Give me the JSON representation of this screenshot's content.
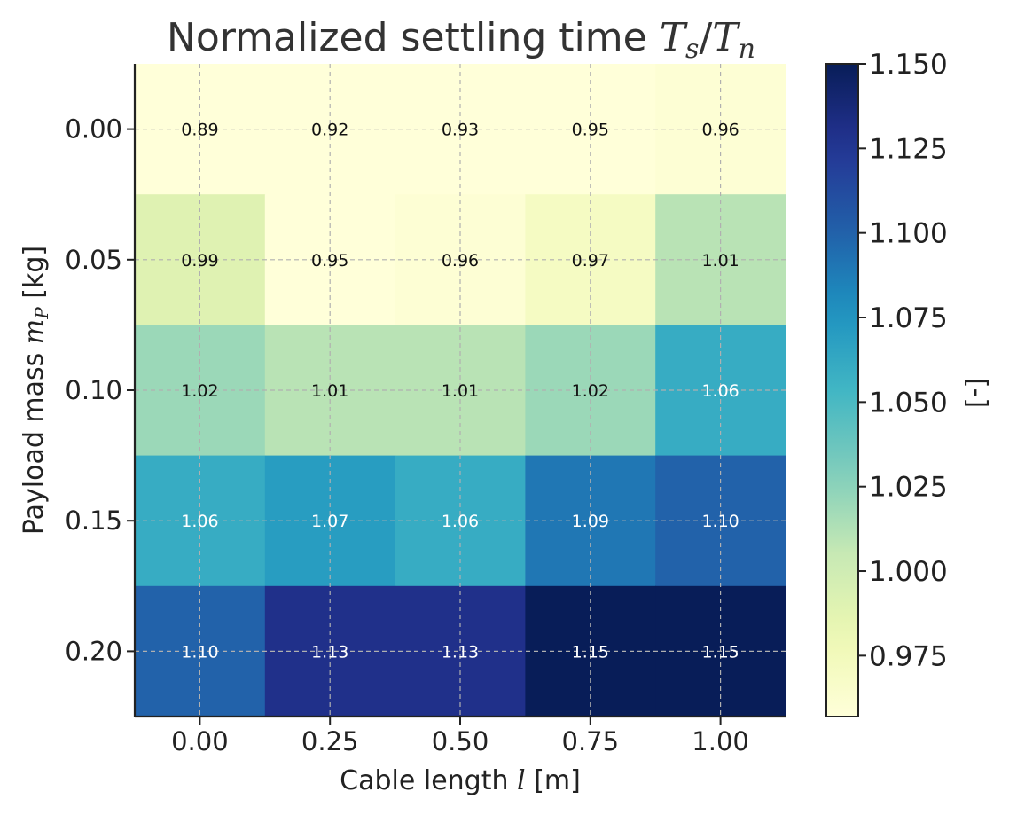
{
  "chart_data": {
    "type": "heatmap",
    "title": "Normalized settling time",
    "title_math": {
      "ts_base": "T",
      "ts_sub": "s",
      "slash": "/",
      "tn_base": "T",
      "tn_sub": "n"
    },
    "xlabel": {
      "prefix": "Cable length ",
      "var": "l",
      "suffix": " [m]"
    },
    "ylabel": {
      "prefix": "Payload mass ",
      "var": "m",
      "sub": "P",
      "suffix": " [kg]"
    },
    "x_ticks": [
      "0.00",
      "0.25",
      "0.50",
      "0.75",
      "1.00"
    ],
    "y_ticks": [
      "0.00",
      "0.05",
      "0.10",
      "0.15",
      "0.20"
    ],
    "values": [
      [
        0.89,
        0.92,
        0.93,
        0.95,
        0.96
      ],
      [
        0.99,
        0.95,
        0.96,
        0.97,
        1.01
      ],
      [
        1.02,
        1.01,
        1.01,
        1.02,
        1.06
      ],
      [
        1.06,
        1.07,
        1.06,
        1.09,
        1.1
      ],
      [
        1.1,
        1.13,
        1.13,
        1.15,
        1.15
      ]
    ],
    "colorbar": {
      "label": "[-]",
      "vmin": 0.957,
      "vmax": 1.15,
      "ticks": [
        0.975,
        1.0,
        1.025,
        1.05,
        1.075,
        1.1,
        1.125,
        1.15
      ],
      "tick_labels": [
        "0.975",
        "1.000",
        "1.025",
        "1.050",
        "1.075",
        "1.100",
        "1.125",
        "1.150"
      ]
    },
    "colormap": "YlGnBu",
    "grid": true
  }
}
